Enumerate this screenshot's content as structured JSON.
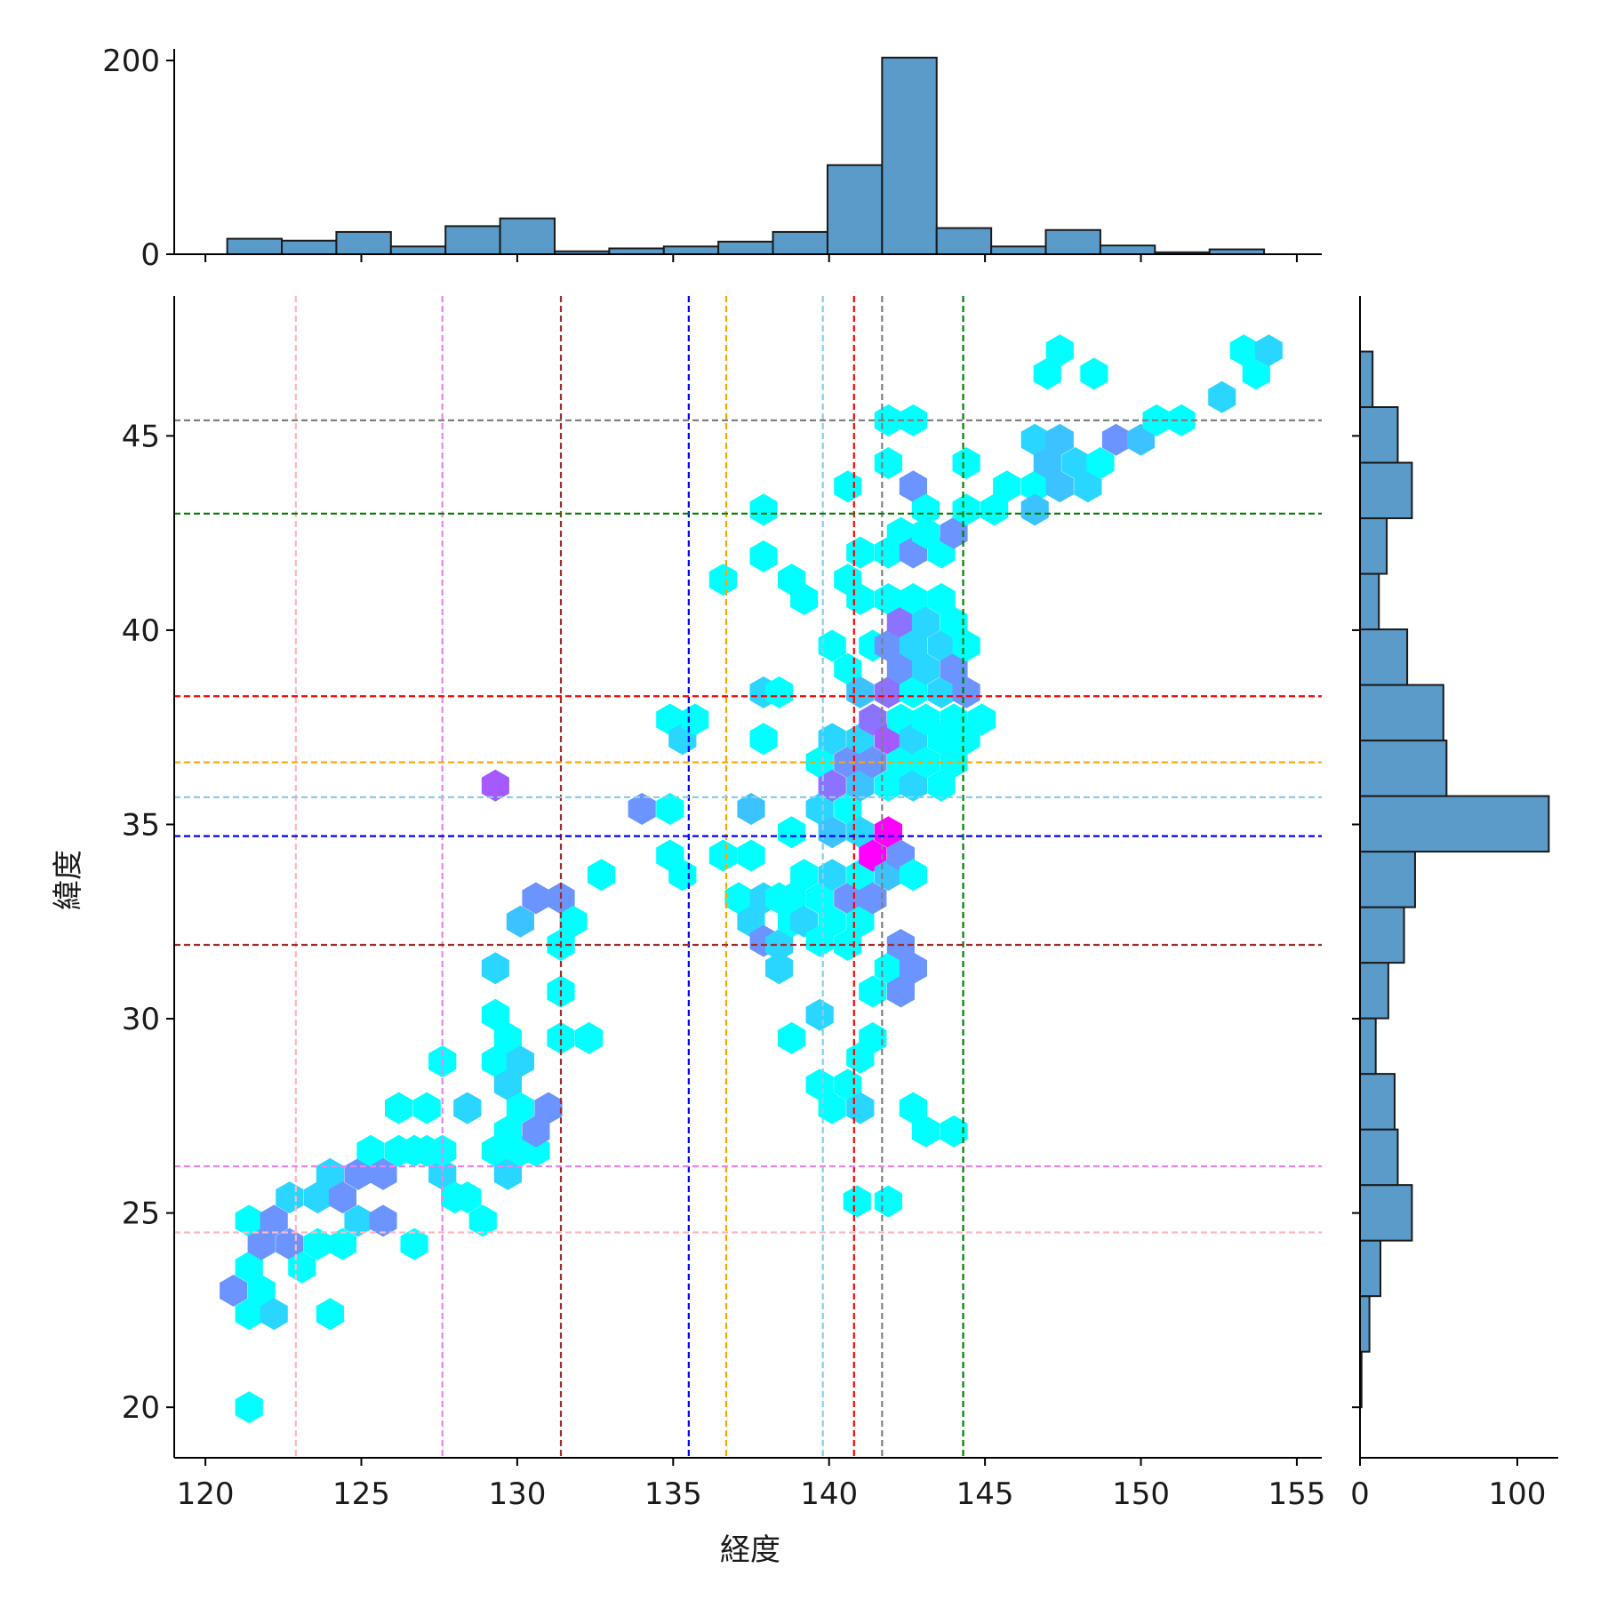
{
  "chart_data": {
    "type": "hexbin-jointplot",
    "xlabel": "経度",
    "ylabel": "緯度",
    "xlim": [
      119,
      155.8
    ],
    "ylim": [
      18.7,
      48.6
    ],
    "x_ticks": [
      120,
      125,
      130,
      135,
      140,
      145,
      150,
      155
    ],
    "y_ticks": [
      20,
      25,
      30,
      35,
      40,
      45
    ],
    "x_tick_labels": [
      "120",
      "125",
      "130",
      "135",
      "140",
      "145",
      "150",
      "155"
    ],
    "y_tick_labels": [
      "20",
      "25",
      "30",
      "35",
      "40",
      "45"
    ],
    "grid": false,
    "colormap": "cool",
    "colors": {
      "hex_levels": [
        "#00ffff",
        "#29d6ff",
        "#3cc3ff",
        "#6b94ff",
        "#8c73ff",
        "#a55aff",
        "#ff00ff"
      ],
      "hist_fill": "#5b9bc9",
      "hist_edge": "#1a1a1a"
    },
    "vertical_lines": [
      {
        "x": 122.9,
        "color": "#ffb6c1"
      },
      {
        "x": 127.6,
        "color": "#ee82ee"
      },
      {
        "x": 131.4,
        "color": "#a52a2a"
      },
      {
        "x": 135.5,
        "color": "#0000ff"
      },
      {
        "x": 136.7,
        "color": "#ffa500"
      },
      {
        "x": 139.8,
        "color": "#87ceeb"
      },
      {
        "x": 140.8,
        "color": "#ff0000"
      },
      {
        "x": 141.7,
        "color": "#808080"
      },
      {
        "x": 144.3,
        "color": "#008000"
      }
    ],
    "horizontal_lines": [
      {
        "y": 45.4,
        "color": "#808080"
      },
      {
        "y": 43.0,
        "color": "#008000"
      },
      {
        "y": 38.3,
        "color": "#ff0000"
      },
      {
        "y": 36.6,
        "color": "#ffa500"
      },
      {
        "y": 35.7,
        "color": "#87ceeb"
      },
      {
        "y": 34.7,
        "color": "#0000ff"
      },
      {
        "y": 31.9,
        "color": "#a52a2a"
      },
      {
        "y": 26.2,
        "color": "#ee82ee"
      },
      {
        "y": 24.5,
        "color": "#ffb6c1"
      }
    ],
    "hexbins": [
      [
        121.4,
        20.0,
        0
      ],
      [
        121.4,
        22.4,
        0
      ],
      [
        121.4,
        23.6,
        0
      ],
      [
        121.4,
        24.8,
        0
      ],
      [
        120.9,
        23.0,
        3
      ],
      [
        121.8,
        23.0,
        0
      ],
      [
        122.2,
        22.4,
        1
      ],
      [
        121.8,
        24.2,
        3
      ],
      [
        122.2,
        24.8,
        3
      ],
      [
        122.7,
        24.2,
        3
      ],
      [
        122.7,
        25.4,
        1
      ],
      [
        123.1,
        23.6,
        0
      ],
      [
        123.6,
        24.2,
        0
      ],
      [
        123.6,
        25.4,
        1
      ],
      [
        124.0,
        22.4,
        0
      ],
      [
        124.0,
        26.0,
        1
      ],
      [
        124.4,
        24.2,
        0
      ],
      [
        124.4,
        25.4,
        3
      ],
      [
        124.9,
        24.8,
        1
      ],
      [
        124.9,
        26.0,
        3
      ],
      [
        125.3,
        26.6,
        0
      ],
      [
        125.7,
        26.0,
        3
      ],
      [
        125.7,
        24.8,
        3
      ],
      [
        126.2,
        26.6,
        0
      ],
      [
        126.2,
        27.7,
        0
      ],
      [
        126.7,
        26.6,
        0
      ],
      [
        126.7,
        24.2,
        0
      ],
      [
        127.1,
        27.7,
        0
      ],
      [
        127.1,
        26.6,
        0
      ],
      [
        127.6,
        26.0,
        1
      ],
      [
        127.6,
        26.6,
        0
      ],
      [
        127.6,
        28.9,
        0
      ],
      [
        128.0,
        25.4,
        0
      ],
      [
        128.4,
        27.7,
        1
      ],
      [
        128.4,
        25.4,
        0
      ],
      [
        128.9,
        24.8,
        0
      ],
      [
        129.3,
        26.6,
        0
      ],
      [
        129.3,
        28.9,
        0
      ],
      [
        129.3,
        30.1,
        0
      ],
      [
        129.3,
        31.3,
        1
      ],
      [
        129.3,
        36.0,
        5
      ],
      [
        129.7,
        27.1,
        0
      ],
      [
        129.7,
        26.0,
        1
      ],
      [
        129.7,
        28.3,
        1
      ],
      [
        129.7,
        29.5,
        0
      ],
      [
        130.1,
        26.6,
        0
      ],
      [
        130.1,
        27.7,
        0
      ],
      [
        130.1,
        28.9,
        1
      ],
      [
        130.1,
        32.5,
        2
      ],
      [
        130.6,
        26.6,
        0
      ],
      [
        130.6,
        27.1,
        3
      ],
      [
        130.6,
        33.1,
        3
      ],
      [
        131.0,
        27.7,
        3
      ],
      [
        131.4,
        29.5,
        0
      ],
      [
        131.4,
        30.7,
        0
      ],
      [
        131.4,
        31.9,
        0
      ],
      [
        131.4,
        33.1,
        3
      ],
      [
        131.8,
        32.5,
        0
      ],
      [
        132.3,
        29.5,
        0
      ],
      [
        132.7,
        33.7,
        0
      ],
      [
        134.0,
        35.4,
        3
      ],
      [
        134.9,
        37.7,
        0
      ],
      [
        134.9,
        35.4,
        0
      ],
      [
        134.9,
        34.2,
        0
      ],
      [
        135.3,
        37.2,
        1
      ],
      [
        135.3,
        33.7,
        0
      ],
      [
        135.7,
        37.7,
        0
      ],
      [
        136.6,
        41.3,
        0
      ],
      [
        136.6,
        34.2,
        0
      ],
      [
        137.1,
        33.1,
        0
      ],
      [
        137.5,
        35.4,
        2
      ],
      [
        137.5,
        34.2,
        0
      ],
      [
        137.5,
        32.5,
        1
      ],
      [
        137.9,
        43.1,
        0
      ],
      [
        137.9,
        41.9,
        0
      ],
      [
        137.9,
        38.4,
        1
      ],
      [
        137.9,
        37.2,
        0
      ],
      [
        137.9,
        33.1,
        1
      ],
      [
        137.9,
        32.0,
        3
      ],
      [
        138.4,
        38.4,
        0
      ],
      [
        138.4,
        33.1,
        0
      ],
      [
        138.4,
        31.9,
        1
      ],
      [
        138.4,
        31.3,
        1
      ],
      [
        138.8,
        41.3,
        0
      ],
      [
        138.8,
        34.8,
        0
      ],
      [
        138.8,
        33.1,
        0
      ],
      [
        138.8,
        32.5,
        0
      ],
      [
        138.8,
        29.5,
        0
      ],
      [
        139.2,
        40.8,
        0
      ],
      [
        139.2,
        33.7,
        0
      ],
      [
        139.2,
        32.5,
        1
      ],
      [
        139.7,
        36.6,
        0
      ],
      [
        139.7,
        35.4,
        1
      ],
      [
        139.7,
        33.1,
        0
      ],
      [
        139.7,
        32.0,
        0
      ],
      [
        139.7,
        30.1,
        1
      ],
      [
        139.7,
        28.3,
        0
      ],
      [
        140.1,
        39.6,
        0
      ],
      [
        140.1,
        37.2,
        1
      ],
      [
        140.1,
        36.0,
        4
      ],
      [
        140.1,
        34.8,
        2
      ],
      [
        140.1,
        33.7,
        1
      ],
      [
        140.1,
        32.5,
        0
      ],
      [
        140.1,
        27.7,
        0
      ],
      [
        140.6,
        43.7,
        0
      ],
      [
        140.6,
        41.3,
        0
      ],
      [
        140.6,
        39.0,
        0
      ],
      [
        140.6,
        36.6,
        3
      ],
      [
        140.6,
        35.4,
        0
      ],
      [
        140.6,
        33.1,
        3
      ],
      [
        140.6,
        31.9,
        0
      ],
      [
        140.6,
        28.3,
        0
      ],
      [
        140.9,
        25.3,
        0
      ],
      [
        141.0,
        42.0,
        0
      ],
      [
        141.0,
        40.8,
        0
      ],
      [
        141.0,
        38.4,
        2
      ],
      [
        141.0,
        37.2,
        1
      ],
      [
        141.0,
        36.0,
        2
      ],
      [
        141.0,
        34.8,
        1
      ],
      [
        141.0,
        33.7,
        0
      ],
      [
        141.0,
        32.5,
        0
      ],
      [
        141.0,
        29.0,
        0
      ],
      [
        141.0,
        27.7,
        1
      ],
      [
        141.4,
        39.6,
        0
      ],
      [
        141.4,
        37.7,
        4
      ],
      [
        141.4,
        36.6,
        3
      ],
      [
        141.4,
        34.2,
        6
      ],
      [
        141.4,
        33.1,
        3
      ],
      [
        141.4,
        30.7,
        0
      ],
      [
        141.4,
        29.5,
        0
      ],
      [
        141.9,
        45.4,
        0
      ],
      [
        141.9,
        44.3,
        0
      ],
      [
        141.9,
        42.0,
        0
      ],
      [
        141.9,
        40.8,
        0
      ],
      [
        141.9,
        39.6,
        3
      ],
      [
        141.9,
        38.4,
        4
      ],
      [
        141.9,
        37.2,
        5
      ],
      [
        141.9,
        36.0,
        0
      ],
      [
        141.9,
        34.8,
        6
      ],
      [
        141.9,
        33.7,
        2
      ],
      [
        141.9,
        31.3,
        0
      ],
      [
        141.9,
        25.3,
        0
      ],
      [
        142.3,
        42.5,
        0
      ],
      [
        142.3,
        40.2,
        4
      ],
      [
        142.3,
        39.0,
        3
      ],
      [
        142.3,
        37.7,
        0
      ],
      [
        142.3,
        36.6,
        0
      ],
      [
        142.3,
        34.2,
        3
      ],
      [
        142.3,
        31.9,
        3
      ],
      [
        142.3,
        30.7,
        3
      ],
      [
        142.7,
        45.4,
        0
      ],
      [
        142.7,
        43.7,
        3
      ],
      [
        142.7,
        42.0,
        3
      ],
      [
        142.7,
        40.8,
        0
      ],
      [
        142.7,
        39.6,
        1
      ],
      [
        142.7,
        38.4,
        0
      ],
      [
        142.7,
        37.2,
        1
      ],
      [
        142.7,
        36.0,
        1
      ],
      [
        142.7,
        33.7,
        0
      ],
      [
        142.7,
        31.3,
        3
      ],
      [
        142.7,
        27.7,
        0
      ],
      [
        143.1,
        43.1,
        0
      ],
      [
        143.1,
        42.5,
        0
      ],
      [
        143.1,
        40.2,
        1
      ],
      [
        143.1,
        39.0,
        1
      ],
      [
        143.1,
        37.7,
        0
      ],
      [
        143.1,
        36.6,
        0
      ],
      [
        143.1,
        27.1,
        0
      ],
      [
        143.6,
        42.0,
        0
      ],
      [
        143.6,
        40.8,
        0
      ],
      [
        143.6,
        39.6,
        1
      ],
      [
        143.6,
        38.4,
        1
      ],
      [
        143.6,
        37.2,
        0
      ],
      [
        143.6,
        36.0,
        0
      ],
      [
        144.0,
        42.5,
        3
      ],
      [
        144.0,
        40.2,
        0
      ],
      [
        144.0,
        39.0,
        3
      ],
      [
        144.0,
        37.7,
        0
      ],
      [
        144.0,
        36.6,
        0
      ],
      [
        144.0,
        27.1,
        0
      ],
      [
        144.4,
        44.3,
        0
      ],
      [
        144.4,
        43.1,
        0
      ],
      [
        144.4,
        39.6,
        0
      ],
      [
        144.4,
        38.4,
        3
      ],
      [
        144.4,
        37.2,
        0
      ],
      [
        144.9,
        37.7,
        0
      ],
      [
        145.3,
        43.1,
        0
      ],
      [
        145.7,
        43.7,
        0
      ],
      [
        146.6,
        44.9,
        1
      ],
      [
        146.6,
        43.7,
        0
      ],
      [
        146.6,
        43.1,
        2
      ],
      [
        147.0,
        46.6,
        0
      ],
      [
        147.0,
        44.3,
        2
      ],
      [
        147.4,
        47.2,
        0
      ],
      [
        147.4,
        44.9,
        2
      ],
      [
        147.4,
        43.7,
        2
      ],
      [
        147.9,
        44.3,
        1
      ],
      [
        148.3,
        43.7,
        1
      ],
      [
        148.5,
        46.6,
        0
      ],
      [
        148.7,
        44.3,
        0
      ],
      [
        149.2,
        44.9,
        3
      ],
      [
        150.0,
        44.9,
        2
      ],
      [
        150.5,
        45.4,
        0
      ],
      [
        151.3,
        45.4,
        0
      ],
      [
        152.6,
        46.0,
        1
      ],
      [
        153.3,
        47.2,
        0
      ],
      [
        153.7,
        46.6,
        0
      ],
      [
        154.1,
        47.2,
        1
      ]
    ],
    "top_histogram": {
      "bin_edges": [
        120.7,
        122.45,
        124.2,
        125.95,
        127.7,
        129.45,
        131.2,
        132.95,
        134.7,
        136.45,
        138.2,
        139.95,
        141.7,
        143.45,
        145.2,
        146.95,
        148.7,
        150.45,
        152.2,
        153.95
      ],
      "counts": [
        16,
        14,
        23,
        8,
        29,
        37,
        3,
        6,
        8,
        13,
        23,
        92,
        203,
        27,
        8,
        25,
        9,
        2,
        5
      ],
      "ylim": [
        0,
        212
      ],
      "y_ticks": [
        0,
        200
      ],
      "y_tick_labels": [
        "0",
        "200"
      ]
    },
    "right_histogram": {
      "bin_edges": [
        20.0,
        21.43,
        22.86,
        24.29,
        25.72,
        27.15,
        28.58,
        30.01,
        31.44,
        32.87,
        34.3,
        35.73,
        37.16,
        38.59,
        40.02,
        41.45,
        42.88,
        44.31,
        45.74,
        47.17
      ],
      "counts": [
        1,
        6,
        13,
        33,
        24,
        22,
        10,
        18,
        28,
        35,
        120,
        55,
        53,
        30,
        12,
        17,
        33,
        24,
        8
      ],
      "xlim": [
        0,
        126
      ],
      "x_ticks": [
        0,
        100
      ],
      "x_tick_labels": [
        "0",
        "100"
      ]
    }
  }
}
